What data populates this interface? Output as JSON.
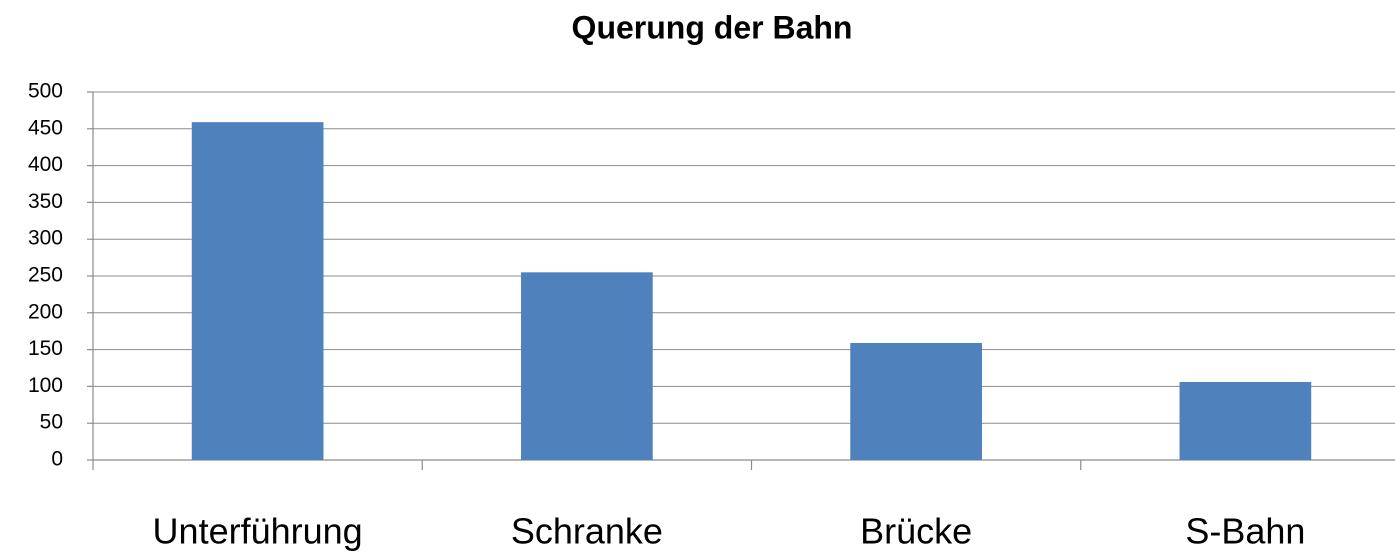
{
  "chart_data": {
    "type": "bar",
    "title": "Querung der Bahn",
    "categories": [
      "Unterführung",
      "Schranke",
      "Brücke",
      "S-Bahn"
    ],
    "values": [
      459,
      255,
      159,
      106
    ],
    "color": "#4f81bd",
    "ylim": [
      0,
      500
    ],
    "yticks": [
      0,
      50,
      100,
      150,
      200,
      250,
      300,
      350,
      400,
      450,
      500
    ],
    "grid": true
  }
}
